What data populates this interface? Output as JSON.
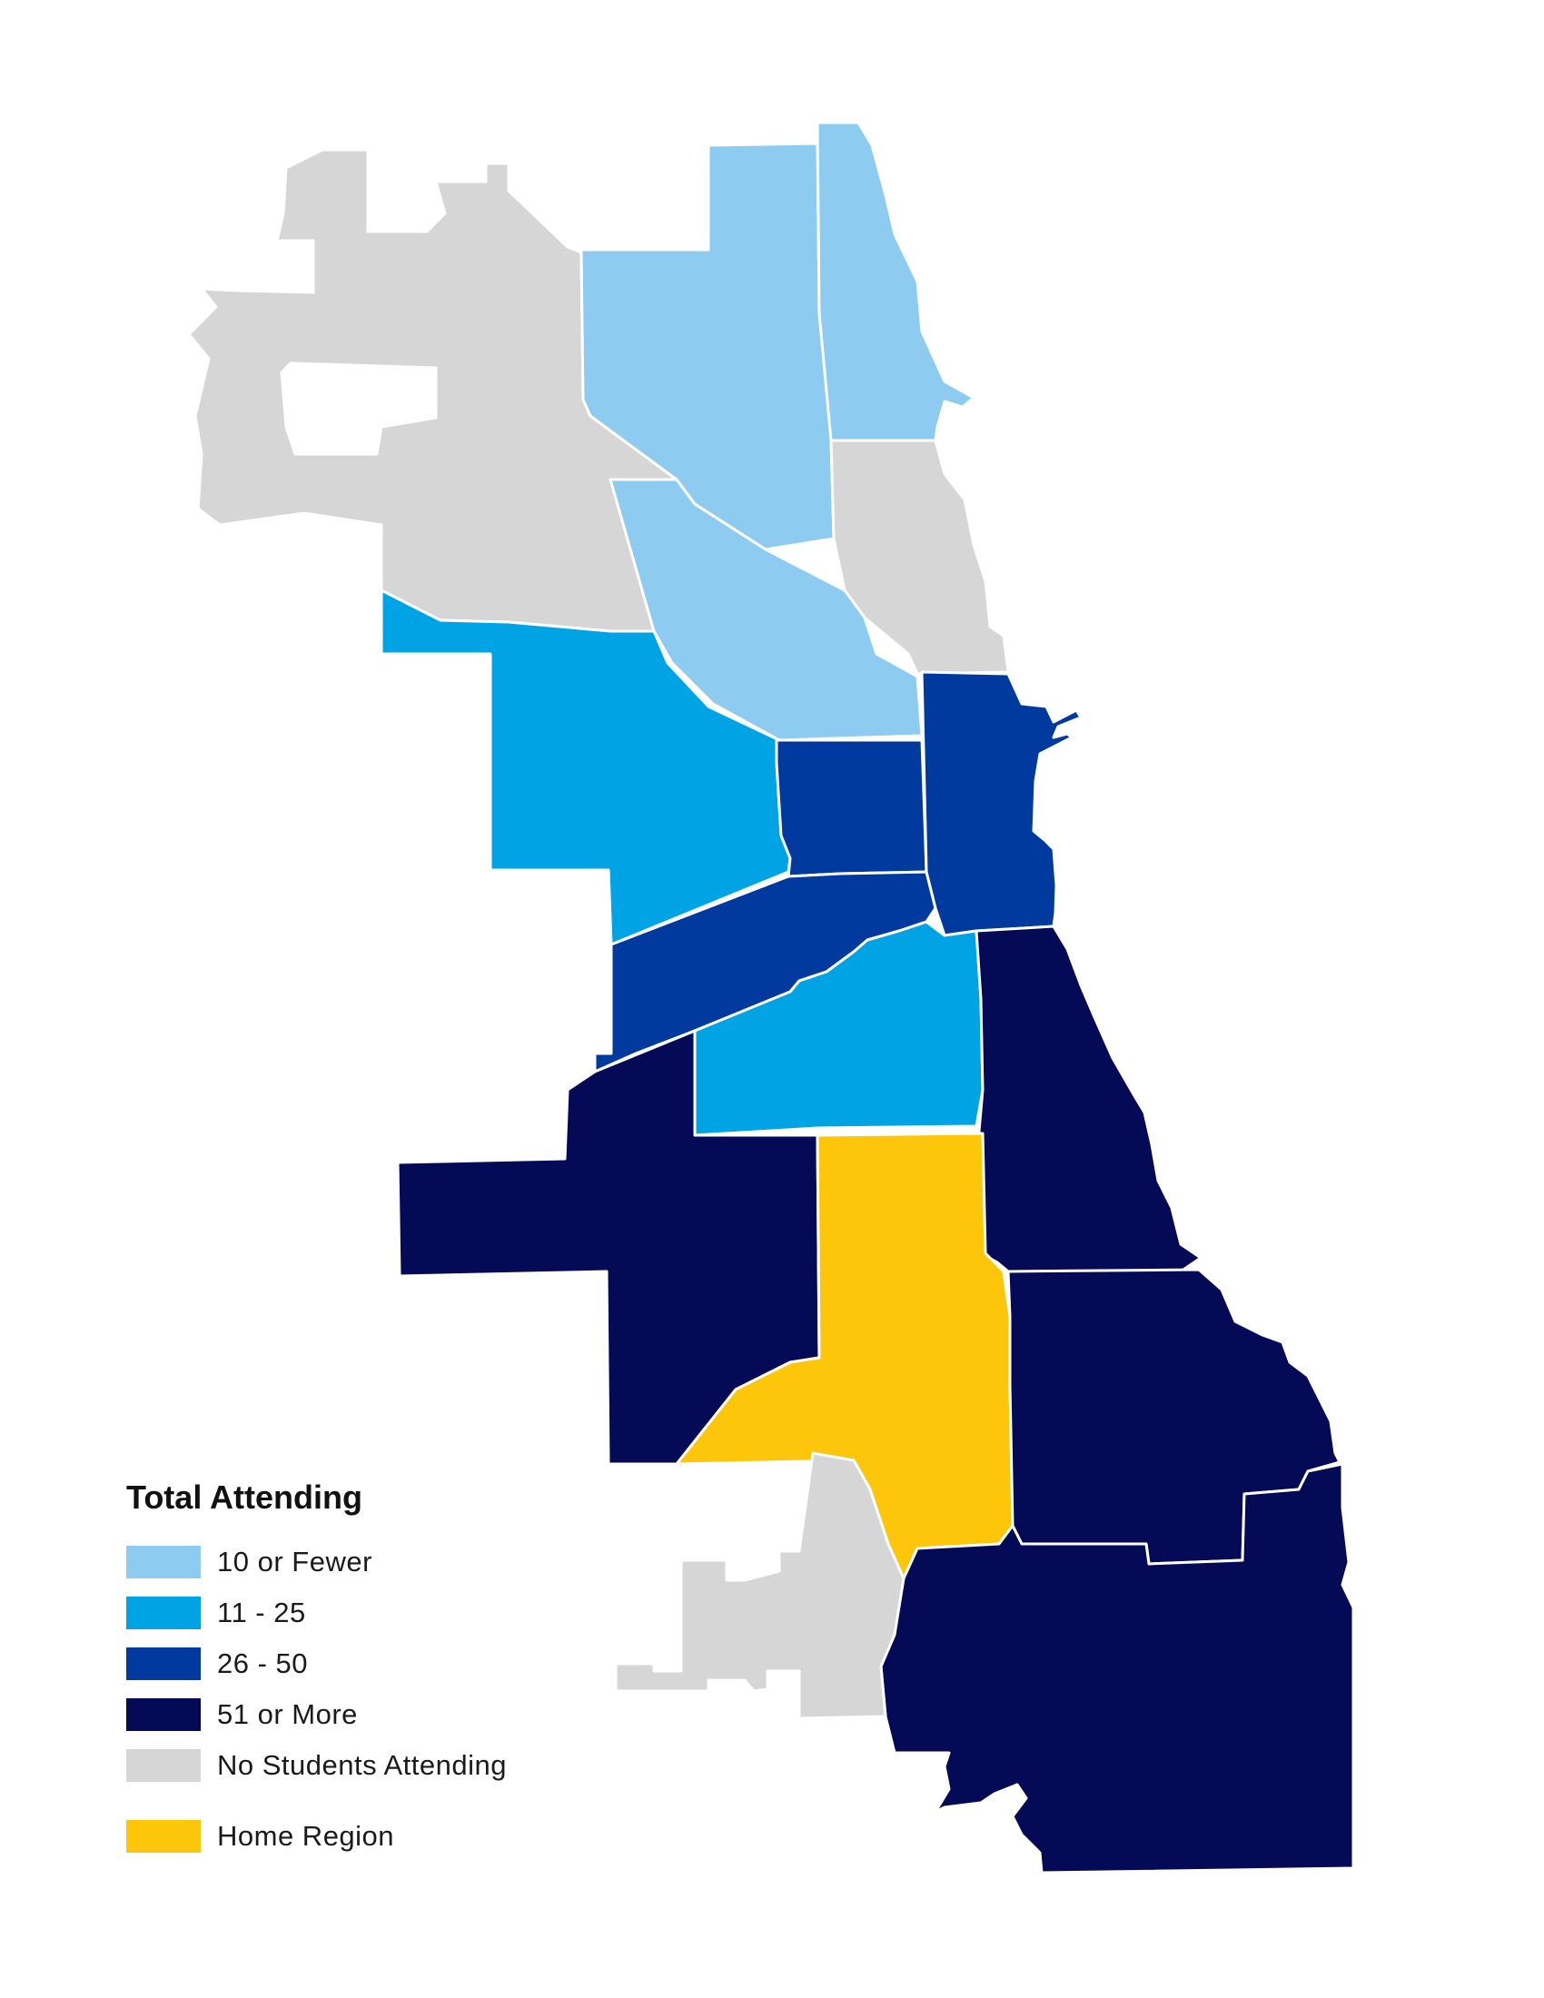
{
  "legend": {
    "title": "Total Attending",
    "items": [
      {
        "label": "10 or Fewer",
        "color": "#8ecbf1"
      },
      {
        "label": "11 - 25",
        "color": "#00a3e4"
      },
      {
        "label": "26 - 50",
        "color": "#003a9e"
      },
      {
        "label": "51 or More",
        "color": "#050a57"
      },
      {
        "label": "No Students Attending",
        "color": "#d6d6d6"
      },
      {
        "label": "Home Region",
        "color": "#fdc60b"
      }
    ]
  },
  "regions": [
    {
      "category": "No Students Attending"
    },
    {
      "category": "10 or Fewer"
    },
    {
      "category": "10 or Fewer"
    },
    {
      "category": "No Students Attending"
    },
    {
      "category": "10 or Fewer"
    },
    {
      "category": "11 - 25"
    },
    {
      "category": "26 - 50"
    },
    {
      "category": "26 - 50"
    },
    {
      "category": "26 - 50"
    },
    {
      "category": "11 - 25"
    },
    {
      "category": "51 or More"
    },
    {
      "category": "51 or More"
    },
    {
      "category": "Home Region"
    },
    {
      "category": "51 or More"
    },
    {
      "category": "51 or More"
    },
    {
      "category": "No Students Attending"
    }
  ]
}
